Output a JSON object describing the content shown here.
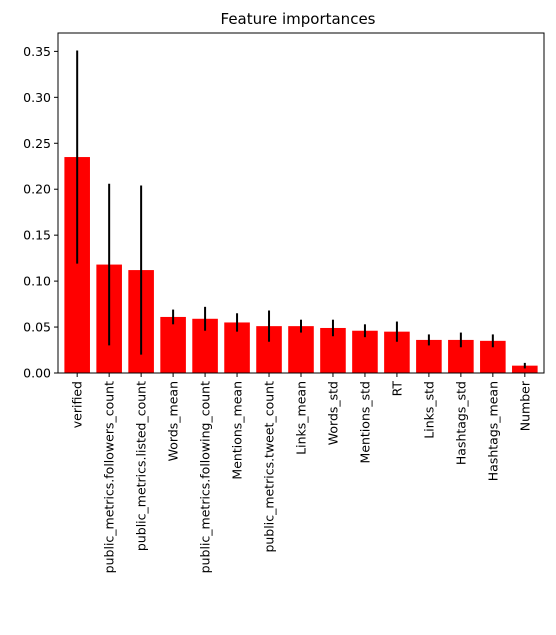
{
  "chart_data": {
    "type": "bar",
    "title": "Feature importances",
    "xlabel": "",
    "ylabel": "",
    "ylim": [
      0,
      0.37
    ],
    "yticks": [
      "0.00",
      "0.05",
      "0.10",
      "0.15",
      "0.20",
      "0.25",
      "0.30",
      "0.35"
    ],
    "grid": false,
    "legend": "none",
    "bar_color": "#ff0000",
    "error_color": "#000000",
    "categories": [
      "verified",
      "public_metrics.followers_count",
      "public_metrics.listed_count",
      "Words_mean",
      "public_metrics.following_count",
      "Mentions_mean",
      "public_metrics.tweet_count",
      "Links_mean",
      "Words_std",
      "Mentions_std",
      "RT",
      "Links_std",
      "Hashtags_std",
      "Hashtags_mean",
      "Number"
    ],
    "values": [
      0.235,
      0.118,
      0.112,
      0.061,
      0.059,
      0.055,
      0.051,
      0.051,
      0.049,
      0.046,
      0.045,
      0.036,
      0.036,
      0.035,
      0.008
    ],
    "errors": [
      0.116,
      0.088,
      0.092,
      0.008,
      0.013,
      0.01,
      0.017,
      0.007,
      0.009,
      0.007,
      0.011,
      0.006,
      0.008,
      0.007,
      0.003
    ]
  }
}
